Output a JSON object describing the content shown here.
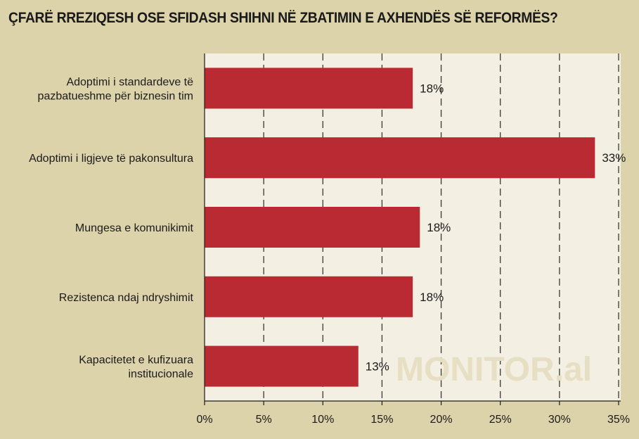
{
  "chart_data": {
    "type": "bar",
    "orientation": "horizontal",
    "title": "ÇFARË RREZIQESH OSE SFIDASH SHIHNI NË ZBATIMIN E AXHENDËS SË REFORMËS?",
    "categories": [
      [
        "Adoptimi i standardeve të",
        "pazbatueshme për biznesin tim"
      ],
      [
        "Adoptimi i ligjeve të pakonsultura"
      ],
      [
        "Mungesa e komunikimit"
      ],
      [
        "Rezistenca ndaj ndryshimit"
      ],
      [
        "Kapacitetet e kufizuara",
        "institucionale"
      ]
    ],
    "values": [
      17.6,
      33.0,
      18.2,
      17.6,
      13.0
    ],
    "value_labels": [
      "18%",
      "33%",
      "18%",
      "18%",
      "13%"
    ],
    "xlim": [
      0,
      35
    ],
    "xticks": [
      0,
      5,
      10,
      15,
      20,
      25,
      30,
      35
    ],
    "xtick_labels": [
      "0%",
      "5%",
      "10%",
      "15%",
      "20%",
      "25%",
      "30%",
      "35%"
    ],
    "grid": true,
    "bar_color": "#b92a32",
    "plot_background": "#f3efe2",
    "page_background": "#ddd3ab"
  },
  "watermark": "MONITOR.al"
}
